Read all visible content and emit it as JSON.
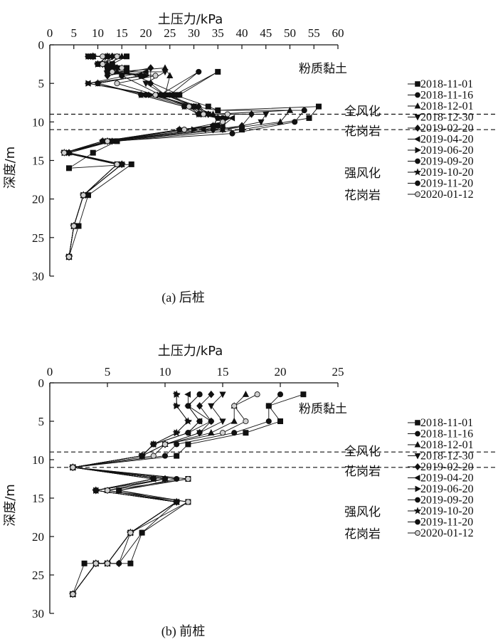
{
  "chart_data": [
    {
      "type": "line",
      "caption": "(a) 后桩",
      "xlabel": "土压力/kPa",
      "ylabel": "深度/m",
      "xlim": [
        0,
        60
      ],
      "ylim": [
        30,
        0
      ],
      "xticks": [
        "0",
        "5",
        "10",
        "15",
        "20",
        "25",
        "30",
        "35",
        "40",
        "45",
        "50",
        "55",
        "60"
      ],
      "yticks": [
        "0",
        "5",
        "10",
        "15",
        "20",
        "25",
        "30"
      ],
      "layer_lines": [
        9,
        11
      ],
      "layer_labels": [
        "粉质黏土",
        "全风化",
        "花岗岩",
        "强风化",
        "花岗岩"
      ],
      "x_axis_position": "top",
      "legend": "right",
      "series": [
        {
          "name": "2018-11-01",
          "marker": "square",
          "x": [
            9,
            16,
            13,
            16,
            16,
            27,
            35,
            26,
            33,
            35,
            56,
            54,
            40,
            14,
            9,
            4,
            17,
            8,
            6,
            4
          ],
          "y": [
            1.5,
            1.5,
            2.5,
            3,
            3.5,
            6.5,
            3.5,
            6.5,
            8,
            8.5,
            8,
            9.5,
            11,
            12.5,
            14,
            16,
            15.5,
            19.5,
            23.5,
            27.5
          ]
        },
        {
          "name": "2018-11-16",
          "marker": "circle",
          "x": [
            8,
            14,
            13,
            12,
            15,
            23,
            31,
            25,
            30,
            35,
            53,
            51,
            38,
            13,
            4,
            15,
            7,
            5,
            4
          ],
          "y": [
            1.5,
            1.5,
            2.5,
            3,
            4,
            6.5,
            3.5,
            6.5,
            8,
            8.5,
            8.5,
            10,
            11.5,
            12.5,
            14,
            15.5,
            19.5,
            23.5,
            27.5
          ]
        },
        {
          "name": "2018-12-01",
          "marker": "triangle",
          "x": [
            9,
            15,
            12,
            15,
            14,
            24,
            25,
            24,
            30,
            34,
            50,
            48,
            36,
            13,
            4,
            15,
            7,
            5,
            4
          ],
          "y": [
            1.5,
            1.5,
            2.5,
            3,
            3.5,
            3,
            4,
            6.5,
            8,
            9,
            8.5,
            10,
            11,
            12.5,
            14,
            15.5,
            19.5,
            23.5,
            27.5
          ]
        },
        {
          "name": "2018-12-30",
          "marker": "triangle-down",
          "x": [
            8,
            14,
            11,
            14,
            13,
            24,
            20,
            24,
            30,
            33,
            45,
            44,
            36,
            13,
            3,
            15,
            7,
            5,
            4
          ],
          "y": [
            1.5,
            1.5,
            2.5,
            3,
            3.5,
            3.5,
            5,
            6.5,
            8,
            9,
            9,
            10,
            11,
            12.5,
            14,
            15.5,
            19.5,
            23.5,
            27.5
          ]
        },
        {
          "name": "2019-02-20",
          "marker": "diamond",
          "x": [
            9,
            13,
            11,
            14,
            12,
            21,
            21,
            24,
            31,
            33,
            42,
            40,
            34,
            12,
            4,
            15,
            7,
            5,
            4
          ],
          "y": [
            1.5,
            1.5,
            2.5,
            3,
            4,
            3,
            5,
            6.5,
            8,
            9,
            9,
            10.5,
            11,
            12.5,
            14,
            15.5,
            19.5,
            23.5,
            27.5
          ]
        },
        {
          "name": "2019-04-20",
          "marker": "triangle-left",
          "x": [
            8,
            12,
            10,
            13,
            12,
            20,
            8,
            22,
            30,
            32,
            38,
            36,
            32,
            12,
            3,
            14,
            7,
            5,
            4
          ],
          "y": [
            1.5,
            1.5,
            2.5,
            3,
            3.5,
            3.5,
            5,
            6.5,
            8,
            9,
            9.5,
            10.5,
            11,
            12.5,
            14,
            15.5,
            19.5,
            23.5,
            27.5
          ]
        },
        {
          "name": "2019-06-20",
          "marker": "triangle-right",
          "x": [
            8,
            12,
            10,
            12,
            12,
            20,
            8,
            21,
            30,
            32,
            37,
            35,
            30,
            12,
            3,
            14,
            7,
            5,
            4
          ],
          "y": [
            1.5,
            1.5,
            2.5,
            3,
            3.5,
            4,
            5,
            6.5,
            8,
            9,
            9.5,
            10.5,
            11,
            12.5,
            14,
            15.5,
            19.5,
            23.5,
            27.5
          ]
        },
        {
          "name": "2019-09-20",
          "marker": "circle",
          "x": [
            8,
            12,
            10,
            12,
            12,
            19,
            10,
            20,
            29,
            31,
            36,
            35,
            28,
            11,
            3,
            14,
            7,
            5,
            4
          ],
          "y": [
            1.5,
            1.5,
            2.5,
            3,
            3.5,
            4,
            5,
            6.5,
            8,
            9,
            9.5,
            10.5,
            11,
            12.5,
            14,
            15.5,
            19.5,
            23.5,
            27.5
          ]
        },
        {
          "name": "2019-10-20",
          "marker": "star",
          "x": [
            9,
            12,
            10,
            12,
            12,
            19,
            10,
            19,
            28,
            31,
            35,
            34,
            27,
            11,
            3,
            15,
            7,
            5,
            4
          ],
          "y": [
            1.5,
            1.5,
            2.5,
            3,
            3.5,
            4,
            5,
            6.5,
            8,
            9,
            9.5,
            10.5,
            11,
            12.5,
            14,
            15.5,
            19.5,
            23.5,
            27.5
          ]
        },
        {
          "name": "2019-11-20",
          "marker": "circle",
          "x": [
            9,
            12,
            11,
            12,
            12,
            19,
            10,
            19,
            28,
            31,
            35,
            34,
            27,
            11,
            3,
            14,
            7,
            5,
            4
          ],
          "y": [
            1.5,
            1.5,
            2.5,
            3,
            3.5,
            4,
            5,
            6.5,
            8,
            9,
            9.5,
            10.5,
            11,
            12.5,
            14,
            15.5,
            19.5,
            23.5,
            27.5
          ]
        },
        {
          "name": "2020-01-12",
          "marker": "circle-open",
          "x": [
            11,
            14,
            11,
            15,
            13,
            22,
            14,
            22,
            29,
            32,
            37,
            36,
            28,
            12,
            3,
            14,
            7,
            5,
            4
          ],
          "y": [
            1.5,
            1.5,
            2.5,
            3,
            3.5,
            4,
            5,
            6.5,
            8,
            9,
            9,
            10,
            11,
            12.5,
            14,
            15.5,
            19.5,
            23.5,
            27.5
          ]
        }
      ]
    },
    {
      "type": "line",
      "caption": "(b) 前桩",
      "xlabel": "土压力/kPa",
      "ylabel": "深度/m",
      "xlim": [
        0,
        25
      ],
      "ylim": [
        30,
        0
      ],
      "xticks": [
        "0",
        "5",
        "10",
        "15",
        "20",
        "25"
      ],
      "yticks": [
        "0",
        "5",
        "10",
        "15",
        "20",
        "25",
        "30"
      ],
      "layer_lines": [
        9,
        11
      ],
      "layer_labels": [
        "粉质黏土",
        "全风化",
        "花岗岩",
        "强风化",
        "花岗岩"
      ],
      "x_axis_position": "top",
      "legend": "right",
      "series": [
        {
          "name": "2018-11-01",
          "marker": "square",
          "x": [
            22,
            19,
            20,
            17,
            12,
            11,
            2,
            12,
            6,
            12,
            8,
            7,
            3,
            2
          ],
          "y": [
            1.5,
            3,
            5,
            6.5,
            8,
            9.5,
            11,
            12.5,
            14,
            15.5,
            19.5,
            23.5,
            23.5,
            27.5
          ]
        },
        {
          "name": "2018-11-16",
          "marker": "circle",
          "x": [
            20,
            19,
            19,
            16,
            11,
            10,
            2,
            11,
            6,
            11,
            8,
            6,
            4,
            2
          ],
          "y": [
            1.5,
            3,
            5,
            6.5,
            8,
            9.5,
            11,
            12.5,
            14,
            15.5,
            19.5,
            23.5,
            23.5,
            27.5
          ]
        },
        {
          "name": "2018-12-01",
          "marker": "triangle",
          "x": [
            17,
            16,
            16,
            14,
            10,
            8,
            2,
            10,
            5,
            11,
            7,
            5,
            4,
            2
          ],
          "y": [
            1.5,
            3,
            5,
            6.5,
            8,
            9.5,
            11,
            12.5,
            14,
            15.5,
            19.5,
            23.5,
            23.5,
            27.5
          ]
        },
        {
          "name": "2018-12-30",
          "marker": "triangle-down",
          "x": [
            15,
            14,
            15,
            13,
            10,
            8,
            2,
            10,
            5,
            11,
            7,
            5,
            4,
            2
          ],
          "y": [
            1.5,
            3,
            5,
            6.5,
            8,
            9.5,
            11,
            12.5,
            14,
            15.5,
            19.5,
            23.5,
            23.5,
            27.5
          ]
        },
        {
          "name": "2019-02-20",
          "marker": "diamond",
          "x": [
            14,
            13,
            14,
            13,
            10,
            8,
            2,
            10,
            4,
            11,
            7,
            6,
            4,
            2
          ],
          "y": [
            1.5,
            3,
            5,
            6.5,
            8,
            9.5,
            11,
            12.5,
            14,
            15.5,
            19.5,
            23.5,
            23.5,
            27.5
          ]
        },
        {
          "name": "2019-04-20",
          "marker": "triangle-left",
          "x": [
            12,
            12,
            13,
            12,
            9,
            8,
            2,
            9,
            4,
            11,
            7,
            5,
            4,
            2
          ],
          "y": [
            1.5,
            3,
            5,
            6.5,
            8,
            9.5,
            11,
            12.5,
            14,
            15.5,
            19.5,
            23.5,
            23.5,
            27.5
          ]
        },
        {
          "name": "2019-06-20",
          "marker": "triangle-right",
          "x": [
            11,
            11,
            12,
            11,
            9,
            8,
            2,
            9,
            4,
            11,
            7,
            5,
            4,
            2
          ],
          "y": [
            1.5,
            3,
            5,
            6.5,
            8,
            9.5,
            11,
            12.5,
            14,
            15.5,
            19.5,
            23.5,
            23.5,
            27.5
          ]
        },
        {
          "name": "2019-09-20",
          "marker": "circle",
          "x": [
            13,
            12,
            13,
            12,
            9,
            8,
            2,
            9,
            4,
            11,
            7,
            5,
            4,
            2
          ],
          "y": [
            1.5,
            3,
            5,
            6.5,
            8,
            9.5,
            11,
            12.5,
            14,
            15.5,
            19.5,
            23.5,
            23.5,
            27.5
          ]
        },
        {
          "name": "2019-10-20",
          "marker": "star",
          "x": [
            11,
            11,
            12,
            11,
            9,
            8,
            2,
            9,
            4,
            11,
            7,
            5,
            4,
            2
          ],
          "y": [
            1.5,
            3,
            5,
            6.5,
            8,
            9.5,
            11,
            12.5,
            14,
            15.5,
            19.5,
            23.5,
            23.5,
            27.5
          ]
        },
        {
          "name": "2019-11-20",
          "marker": "circle",
          "x": [
            13,
            12,
            14,
            12,
            9,
            8,
            2,
            10,
            4,
            11,
            7,
            5,
            4,
            2
          ],
          "y": [
            1.5,
            3,
            5,
            6.5,
            8,
            9.5,
            11,
            12.5,
            14,
            15.5,
            19.5,
            23.5,
            23.5,
            27.5
          ]
        },
        {
          "name": "2020-01-12",
          "marker": "circle-open",
          "x": [
            18,
            16,
            17,
            15,
            10,
            9,
            2,
            12,
            5,
            12,
            7,
            5,
            4,
            2
          ],
          "y": [
            1.5,
            3,
            5,
            6.5,
            8,
            9.5,
            11,
            12.5,
            14,
            15.5,
            19.5,
            23.5,
            23.5,
            27.5
          ]
        }
      ]
    }
  ]
}
